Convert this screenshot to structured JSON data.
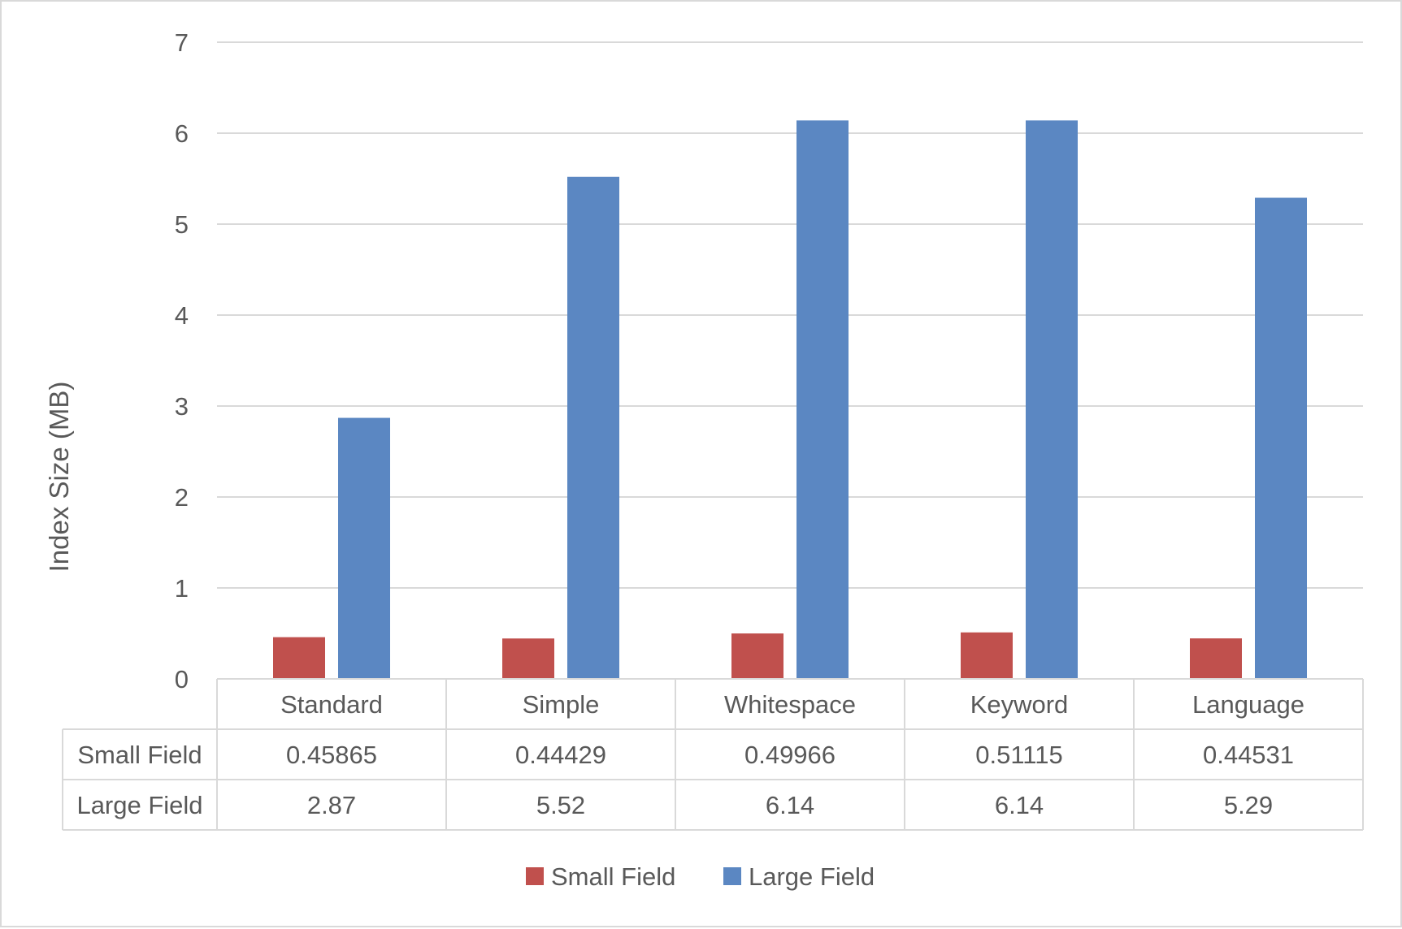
{
  "chart_data": {
    "type": "bar",
    "title": "",
    "xlabel": "",
    "ylabel": "Index Size (MB)",
    "ylim": [
      0,
      7
    ],
    "yticks": [
      0,
      1,
      2,
      3,
      4,
      5,
      6,
      7
    ],
    "grid": true,
    "legend_position": "bottom",
    "data_table": true,
    "categories": [
      "Standard",
      "Simple",
      "Whitespace",
      "Keyword",
      "Language"
    ],
    "series": [
      {
        "name": "Small Field",
        "color": "#c0504d",
        "values": [
          0.45865,
          0.44429,
          0.49966,
          0.51115,
          0.44531
        ],
        "table_labels": [
          "0.45865",
          "0.44429",
          "0.49966",
          "0.51115",
          "0.44531"
        ]
      },
      {
        "name": "Large Field",
        "color": "#5b87c2",
        "values": [
          2.87,
          5.52,
          6.14,
          6.14,
          5.29
        ],
        "table_labels": [
          "2.87",
          "5.52",
          "6.14",
          "6.14",
          "5.29"
        ]
      }
    ]
  }
}
